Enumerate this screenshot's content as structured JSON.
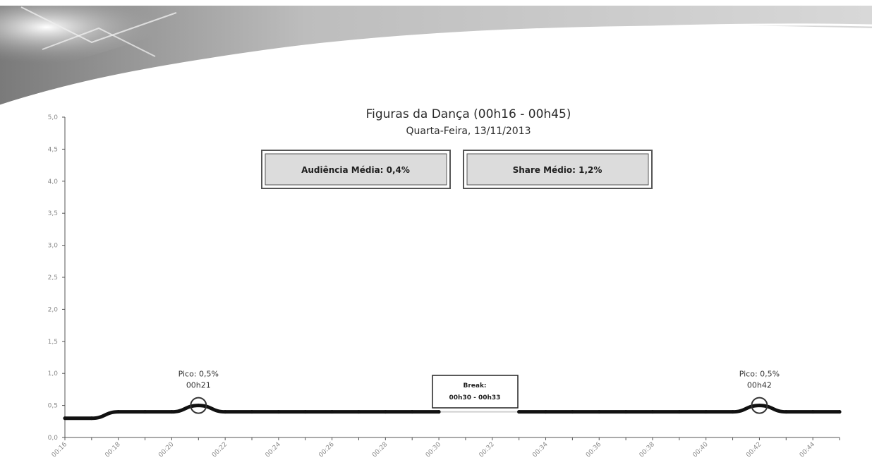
{
  "chart_data": {
    "type": "line",
    "title": "Figuras da Dança (00h16 - 00h45)",
    "subtitle": "Quarta-Feira, 13/11/2013",
    "x": [
      "00:16",
      "00:17",
      "00:18",
      "00:19",
      "00:20",
      "00:21",
      "00:22",
      "00:23",
      "00:24",
      "00:25",
      "00:26",
      "00:27",
      "00:28",
      "00:29",
      "00:30",
      "00:31",
      "00:32",
      "00:33",
      "00:34",
      "00:35",
      "00:36",
      "00:37",
      "00:38",
      "00:39",
      "00:40",
      "00:41",
      "00:42",
      "00:43",
      "00:44",
      "00:45"
    ],
    "series": [
      {
        "values": [
          0.3,
          0.3,
          0.4,
          0.4,
          0.4,
          0.5,
          0.4,
          0.4,
          0.4,
          0.4,
          0.4,
          0.4,
          0.4,
          0.4,
          0.4,
          null,
          null,
          0.4,
          0.4,
          0.4,
          0.4,
          0.4,
          0.4,
          0.4,
          0.4,
          0.4,
          0.5,
          0.4,
          0.4,
          0.4
        ]
      }
    ],
    "x_tick_labels": [
      "00:16",
      "00:18",
      "00:20",
      "00:22",
      "00:24",
      "00:26",
      "00:28",
      "00:30",
      "00:32",
      "00:34",
      "00:36",
      "00:38",
      "00:40",
      "00:42",
      "00:44"
    ],
    "y_tick_labels": [
      "0,0",
      "0,5",
      "1,0",
      "1,5",
      "2,0",
      "2,5",
      "3,0",
      "3,5",
      "4,0",
      "4,5",
      "5,0"
    ],
    "ylim": [
      0,
      5
    ],
    "grid": false,
    "legend": "none",
    "color": "#111111",
    "summary_boxes": [
      "Audiência Média: 0,4%",
      "Share Médio: 1,2%"
    ],
    "break": {
      "title": "Break:",
      "range": "00h30 - 00h33",
      "start": "00:30",
      "end": "00:33"
    },
    "peaks": [
      {
        "x": "00:21",
        "value": 0.5,
        "label": "Pico: 0,5%",
        "time": "00h21"
      },
      {
        "x": "00:42",
        "value": 0.5,
        "label": "Pico: 0,5%",
        "time": "00h42"
      }
    ]
  }
}
